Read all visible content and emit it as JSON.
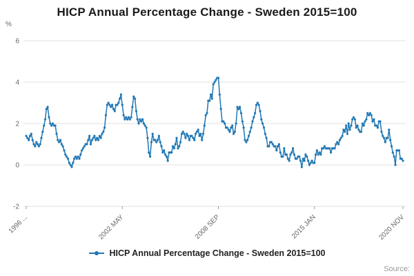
{
  "page": {
    "title": "HICP Annual Percentage Change - Sweden 2015=100",
    "source_label": "Source:"
  },
  "legend": {
    "label": "HICP Annual Percentage Change - Sweden 2015=100"
  },
  "chart_data": {
    "type": "line",
    "title": "HICP Annual Percentage Change - Sweden 2015=100",
    "xlabel": "",
    "ylabel": "%",
    "ylim": [
      -2,
      6
    ],
    "y_ticks": [
      6,
      4,
      2,
      0,
      -2
    ],
    "grid": true,
    "legend_position": "bottom",
    "series_name": "HICP Annual Percentage Change - Sweden 2015=100",
    "color": "#1f77b4",
    "x_unit": "month",
    "x_start": "1996-01",
    "x_end": "2020-11",
    "x_ticks": [
      {
        "index": 0,
        "label": "1996 ..."
      },
      {
        "index": 76,
        "label": "2002 MAY"
      },
      {
        "index": 152,
        "label": "2008 SEP"
      },
      {
        "index": 228,
        "label": "2015 JAN"
      },
      {
        "index": 298,
        "label": "2020 NOV"
      }
    ],
    "values": [
      1.4,
      1.3,
      1.2,
      1.4,
      1.5,
      1.2,
      1.0,
      0.9,
      1.1,
      1.0,
      0.9,
      1.0,
      1.3,
      1.6,
      1.9,
      2.2,
      2.7,
      2.8,
      2.3,
      2.0,
      1.9,
      2.0,
      1.9,
      1.9,
      1.5,
      1.2,
      1.1,
      1.2,
      1.0,
      0.9,
      0.7,
      0.5,
      0.4,
      0.3,
      0.1,
      0.0,
      -0.1,
      0.1,
      0.3,
      0.4,
      0.3,
      0.4,
      0.3,
      0.5,
      0.7,
      0.8,
      0.9,
      1.0,
      1.0,
      1.2,
      1.4,
      1.0,
      1.2,
      1.3,
      1.4,
      1.2,
      1.3,
      1.2,
      1.4,
      1.3,
      1.5,
      1.6,
      1.8,
      2.4,
      2.9,
      3.0,
      2.9,
      2.8,
      2.9,
      2.7,
      2.6,
      2.9,
      2.9,
      3.0,
      3.2,
      3.4,
      2.9,
      2.4,
      2.2,
      2.3,
      2.2,
      2.3,
      2.2,
      2.3,
      2.8,
      3.3,
      3.2,
      2.6,
      2.2,
      2.0,
      2.2,
      2.1,
      2.2,
      2.0,
      1.9,
      1.8,
      1.3,
      0.6,
      0.4,
      1.1,
      1.5,
      1.2,
      1.2,
      1.1,
      1.2,
      1.4,
      1.1,
      0.9,
      0.6,
      0.7,
      0.5,
      0.4,
      0.2,
      0.6,
      0.6,
      0.6,
      0.9,
      0.8,
      1.0,
      1.3,
      0.8,
      0.9,
      1.1,
      1.5,
      1.6,
      1.5,
      1.3,
      1.5,
      1.4,
      1.2,
      1.4,
      1.4,
      1.3,
      1.2,
      1.5,
      1.6,
      1.7,
      1.4,
      1.5,
      1.2,
      1.5,
      1.9,
      2.4,
      2.5,
      3.1,
      3.1,
      3.4,
      3.2,
      3.9,
      4.0,
      4.1,
      4.2,
      4.2,
      3.4,
      2.7,
      2.1,
      2.1,
      2.0,
      1.8,
      1.8,
      1.7,
      1.6,
      1.8,
      1.9,
      1.5,
      1.6,
      2.0,
      2.8,
      2.7,
      2.8,
      2.5,
      2.1,
      1.8,
      1.2,
      1.1,
      1.2,
      1.4,
      1.6,
      1.8,
      2.1,
      2.3,
      2.5,
      2.9,
      3.0,
      2.9,
      2.6,
      2.2,
      2.0,
      1.8,
      1.5,
      1.3,
      0.9,
      0.9,
      1.1,
      1.1,
      1.0,
      0.9,
      0.9,
      0.7,
      0.9,
      1.0,
      0.6,
      0.4,
      0.4,
      0.8,
      0.5,
      0.5,
      0.3,
      0.2,
      0.5,
      0.6,
      0.8,
      0.5,
      0.3,
      0.3,
      0.4,
      0.4,
      0.2,
      -0.1,
      0.3,
      0.2,
      0.5,
      0.4,
      0.2,
      0.0,
      0.1,
      0.2,
      0.1,
      0.1,
      0.5,
      0.7,
      0.5,
      0.6,
      0.5,
      0.8,
      0.8,
      0.9,
      0.8,
      0.8,
      0.8,
      0.8,
      0.6,
      0.8,
      0.8,
      0.8,
      1.0,
      1.1,
      1.0,
      1.2,
      1.3,
      1.4,
      1.7,
      1.6,
      1.9,
      1.5,
      2.0,
      1.7,
      1.9,
      2.2,
      2.3,
      2.2,
      1.8,
      1.9,
      1.7,
      1.6,
      1.6,
      2.0,
      1.9,
      2.1,
      2.2,
      2.5,
      2.4,
      2.5,
      2.4,
      2.1,
      2.2,
      1.9,
      1.9,
      1.8,
      2.1,
      2.1,
      1.6,
      1.4,
      1.3,
      1.1,
      1.3,
      1.3,
      1.7,
      1.2,
      0.9,
      0.6,
      0.4,
      0.0,
      0.7,
      0.7,
      0.7,
      0.3,
      0.3,
      0.2
    ]
  }
}
